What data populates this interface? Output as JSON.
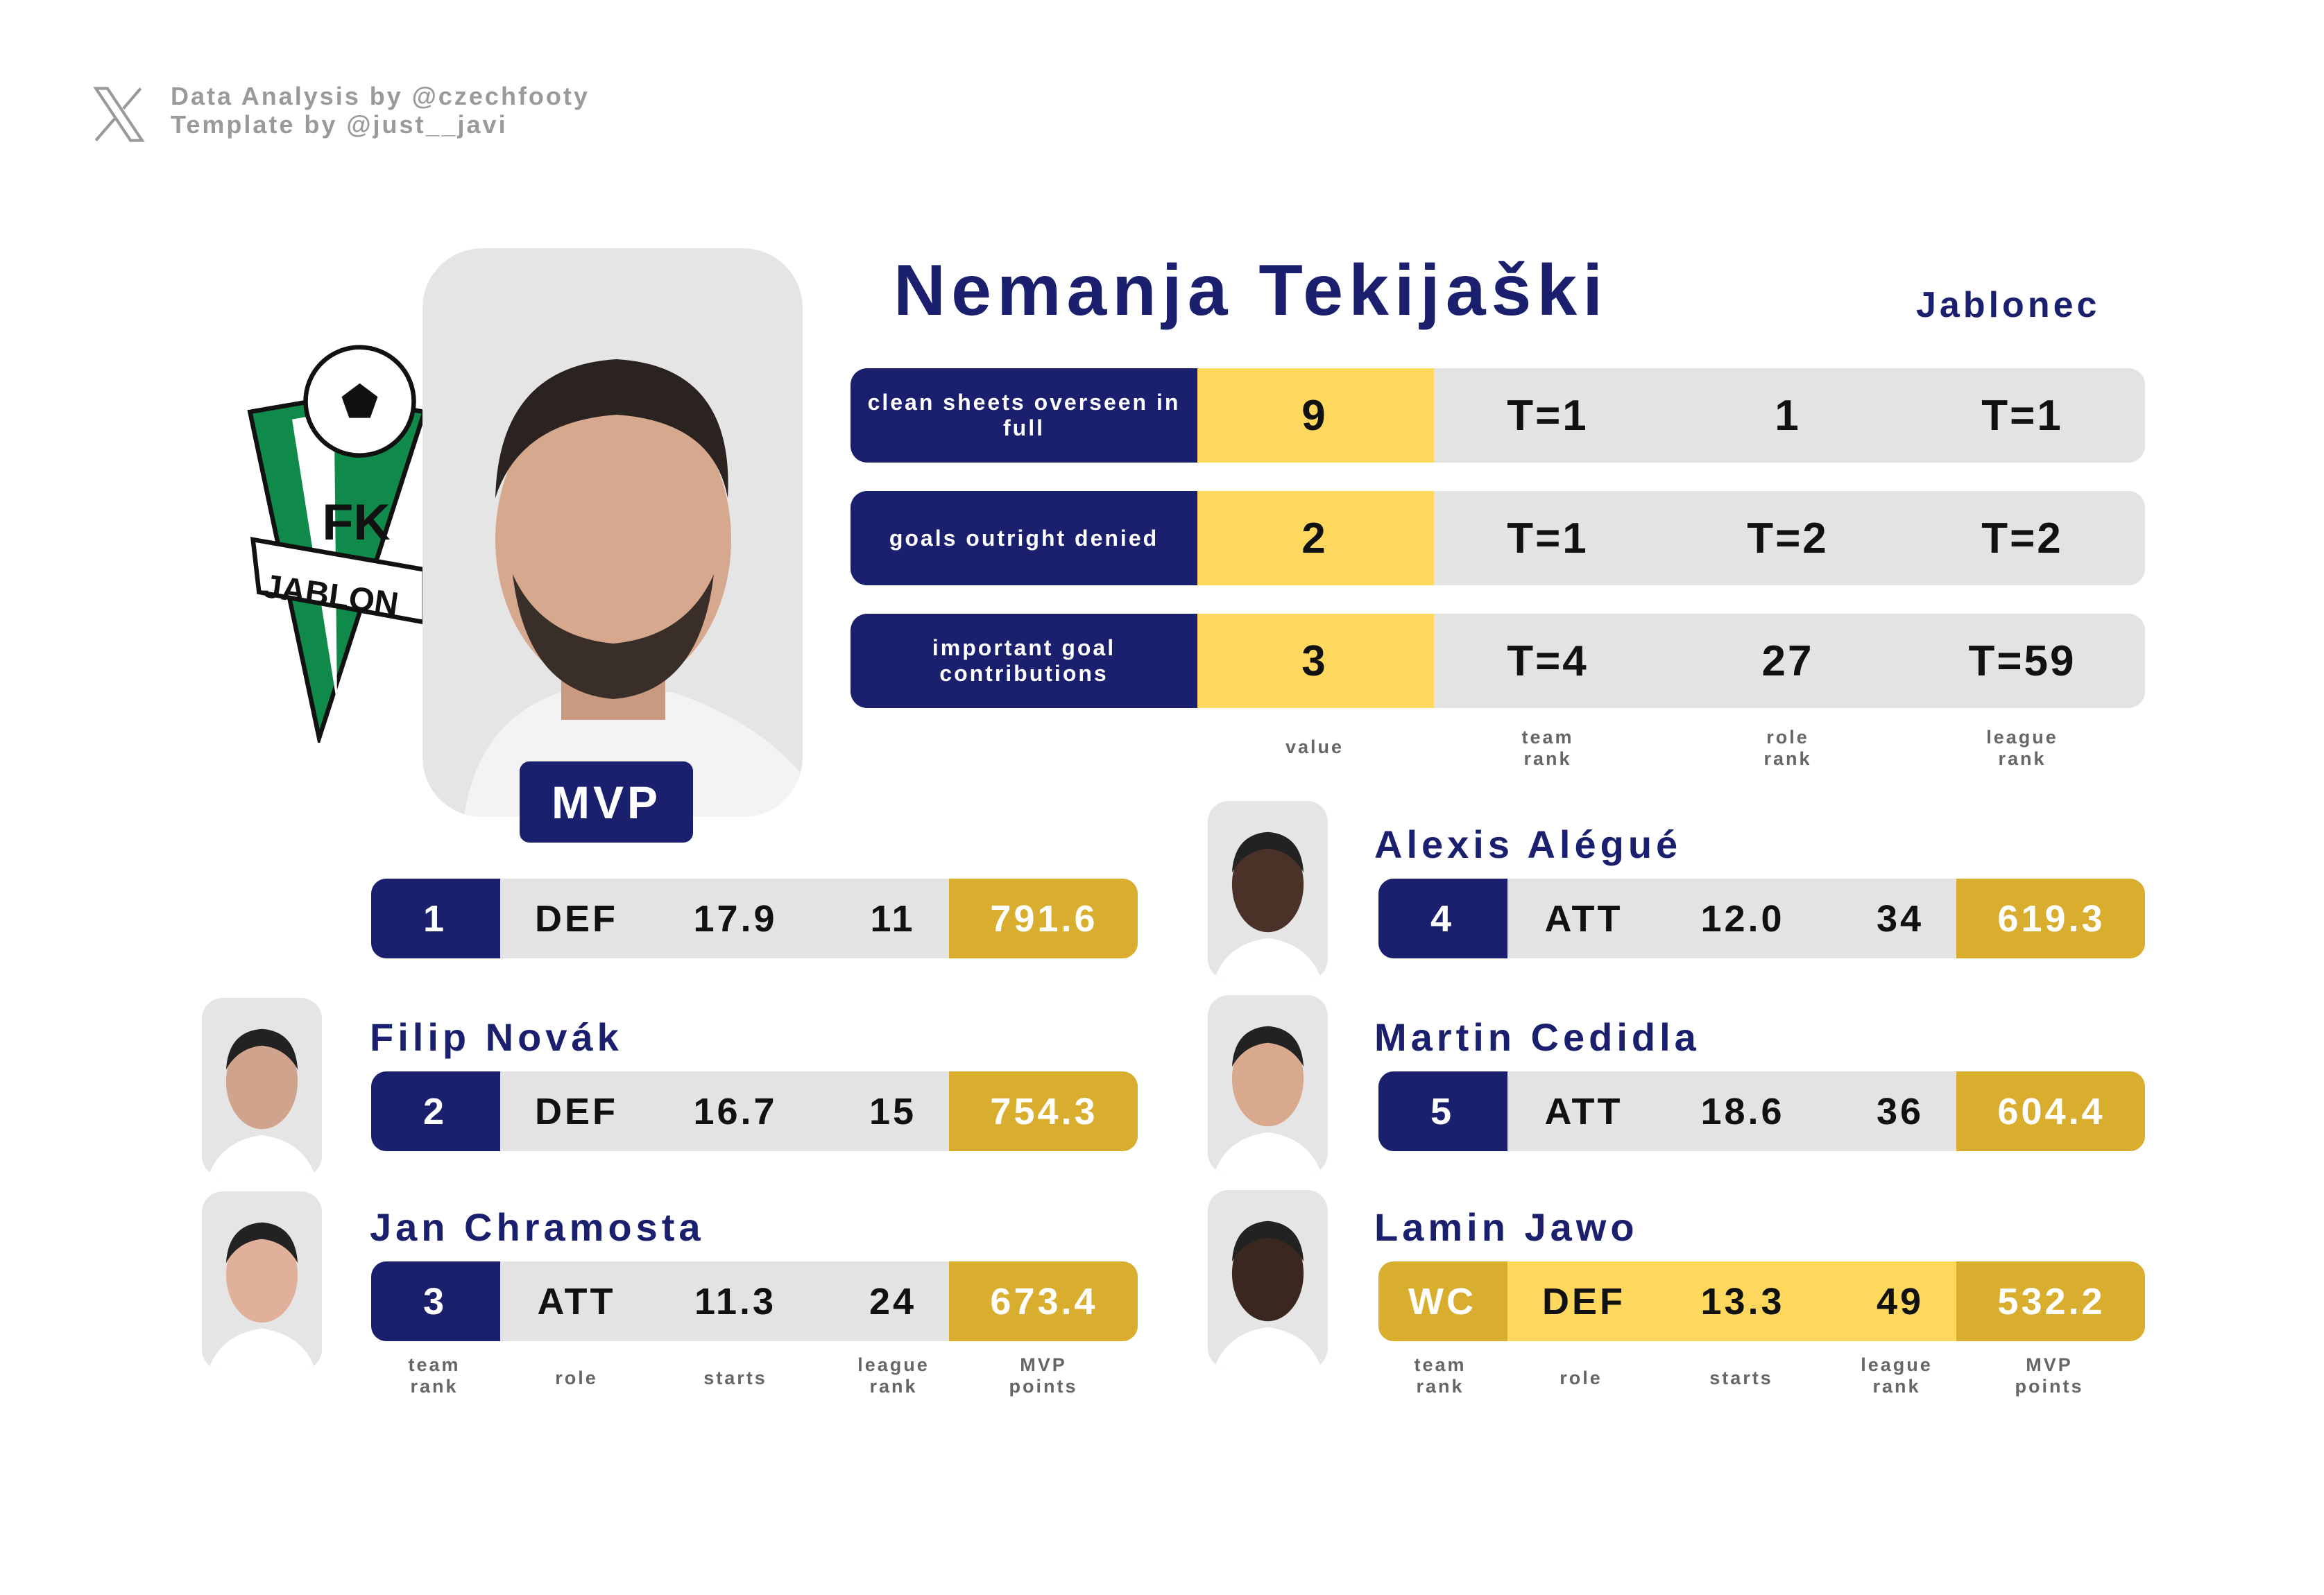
{
  "credits": {
    "line1": "Data Analysis by @czechfooty",
    "line2": "Template by @just__javi",
    "icon": "x-logo-icon"
  },
  "club_crest": {
    "text_top": "FK",
    "text_band": "JABLONEC"
  },
  "mvp": {
    "badge": "MVP",
    "name": "Nemanja Tekijaški",
    "club": "Jablonec",
    "stats": [
      {
        "label": "clean sheets overseen in full",
        "value": "9",
        "team_rank": "T=1",
        "role_rank": "1",
        "league_rank": "T=1"
      },
      {
        "label": "goals outright denied",
        "value": "2",
        "team_rank": "T=1",
        "role_rank": "T=2",
        "league_rank": "T=2"
      },
      {
        "label": "important goal contributions",
        "value": "3",
        "team_rank": "T=4",
        "role_rank": "27",
        "league_rank": "T=59"
      }
    ],
    "headers": {
      "value": "value",
      "team_rank": "team\nrank",
      "role_rank": "role\nrank",
      "league_rank": "league\nrank"
    },
    "row": {
      "team_rank": "1",
      "role": "DEF",
      "starts": "17.9",
      "league_rank": "11",
      "points": "791.6"
    }
  },
  "players_left": [
    {
      "name": "Filip Novák",
      "team_rank": "2",
      "role": "DEF",
      "starts": "16.7",
      "league_rank": "15",
      "points": "754.3"
    },
    {
      "name": "Jan Chramosta",
      "team_rank": "3",
      "role": "ATT",
      "starts": "11.3",
      "league_rank": "24",
      "points": "673.4"
    }
  ],
  "players_right": [
    {
      "name": "Alexis Alégué",
      "team_rank": "4",
      "role": "ATT",
      "starts": "12.0",
      "league_rank": "34",
      "points": "619.3"
    },
    {
      "name": "Martin Cedidla",
      "team_rank": "5",
      "role": "ATT",
      "starts": "18.6",
      "league_rank": "36",
      "points": "604.4"
    },
    {
      "name": "Lamin Jawo",
      "team_rank": "WC",
      "role": "DEF",
      "starts": "13.3",
      "league_rank": "49",
      "points": "532.2"
    }
  ],
  "player_headers": {
    "team_rank": "team\nrank",
    "role": "role",
    "starts": "starts",
    "league_rank": "league\nrank",
    "points": "MVP\npoints"
  },
  "colors": {
    "navy": "#1a1f6e",
    "yellow": "#fdd85d",
    "gold": "#d9ad2d",
    "grey": "#e4e3e4",
    "club_green": "#0f8a4a"
  }
}
